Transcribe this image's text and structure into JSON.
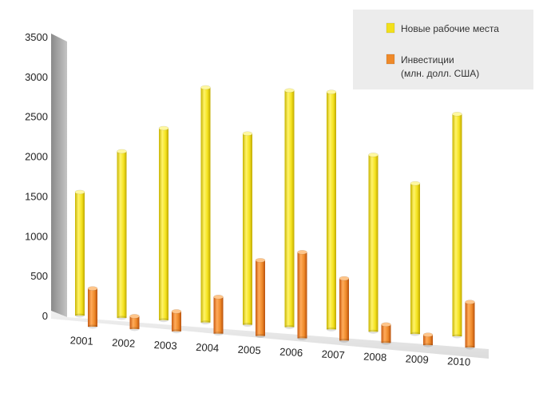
{
  "chart_data": {
    "type": "bar",
    "categories": [
      "2001",
      "2002",
      "2003",
      "2004",
      "2005",
      "2006",
      "2007",
      "2008",
      "2009",
      "2010"
    ],
    "series": [
      {
        "name": "Новые рабочие места",
        "color": "#f2e01c",
        "values": [
          1550,
          2090,
          2410,
          2950,
          2400,
          2970,
          2980,
          2220,
          1890,
          2790
        ]
      },
      {
        "name": "Инвестиции (млн. долл. США)",
        "color": "#ef8a2a",
        "values": [
          480,
          160,
          250,
          460,
          950,
          1080,
          780,
          230,
          130,
          570
        ]
      }
    ],
    "legend": {
      "items": [
        {
          "line1": "Новые рабочие места",
          "line2": ""
        },
        {
          "line1": "Инвестиции",
          "line2": "(млн. долл. США)"
        }
      ],
      "placement": "top-right"
    },
    "yticks": [
      "0",
      "500",
      "1000",
      "1500",
      "2000",
      "2500",
      "3000",
      "3500"
    ],
    "ylim": [
      0,
      3500
    ],
    "grid": false,
    "title": "",
    "xlabel": "",
    "ylabel": ""
  }
}
